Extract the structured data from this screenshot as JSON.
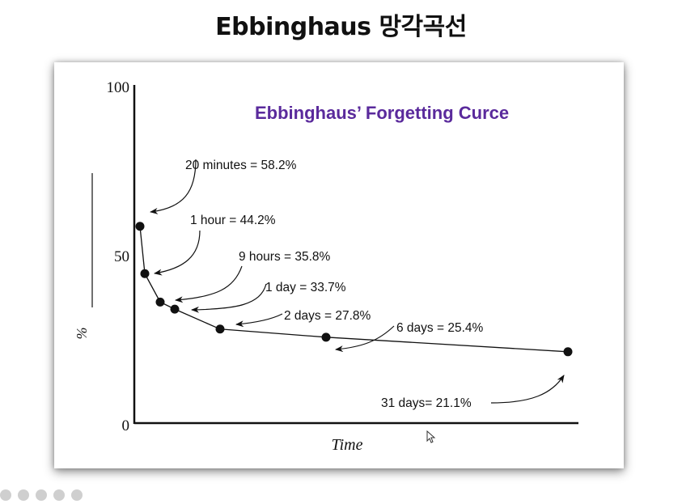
{
  "slide": {
    "title": "Ebbinghaus 망각곡선"
  },
  "chart_data": {
    "type": "line",
    "title": "Ebbinghaus’ Forgetting Curce",
    "title_color": "#5a2a9c",
    "xlabel": "Time",
    "ylabel": "%",
    "ylim": [
      0,
      100
    ],
    "yticks": [
      "0",
      "50",
      "100"
    ],
    "grid": false,
    "points": [
      {
        "x": 20,
        "y": 58.2,
        "label": "20 minutes = 58.2%"
      },
      {
        "x": 60,
        "y": 44.2,
        "label": "1 hour = 44.2%"
      },
      {
        "x": 540,
        "y": 35.8,
        "label": "9 hours = 35.8%"
      },
      {
        "x": 1440,
        "y": 33.7,
        "label": "1 day = 33.7%"
      },
      {
        "x": 2880,
        "y": 27.8,
        "label": "2 days = 27.8%"
      },
      {
        "x": 8640,
        "y": 25.4,
        "label": "6 days = 25.4%"
      },
      {
        "x": 44640,
        "y": 21.1,
        "label": "31 days= 21.1%"
      }
    ]
  }
}
